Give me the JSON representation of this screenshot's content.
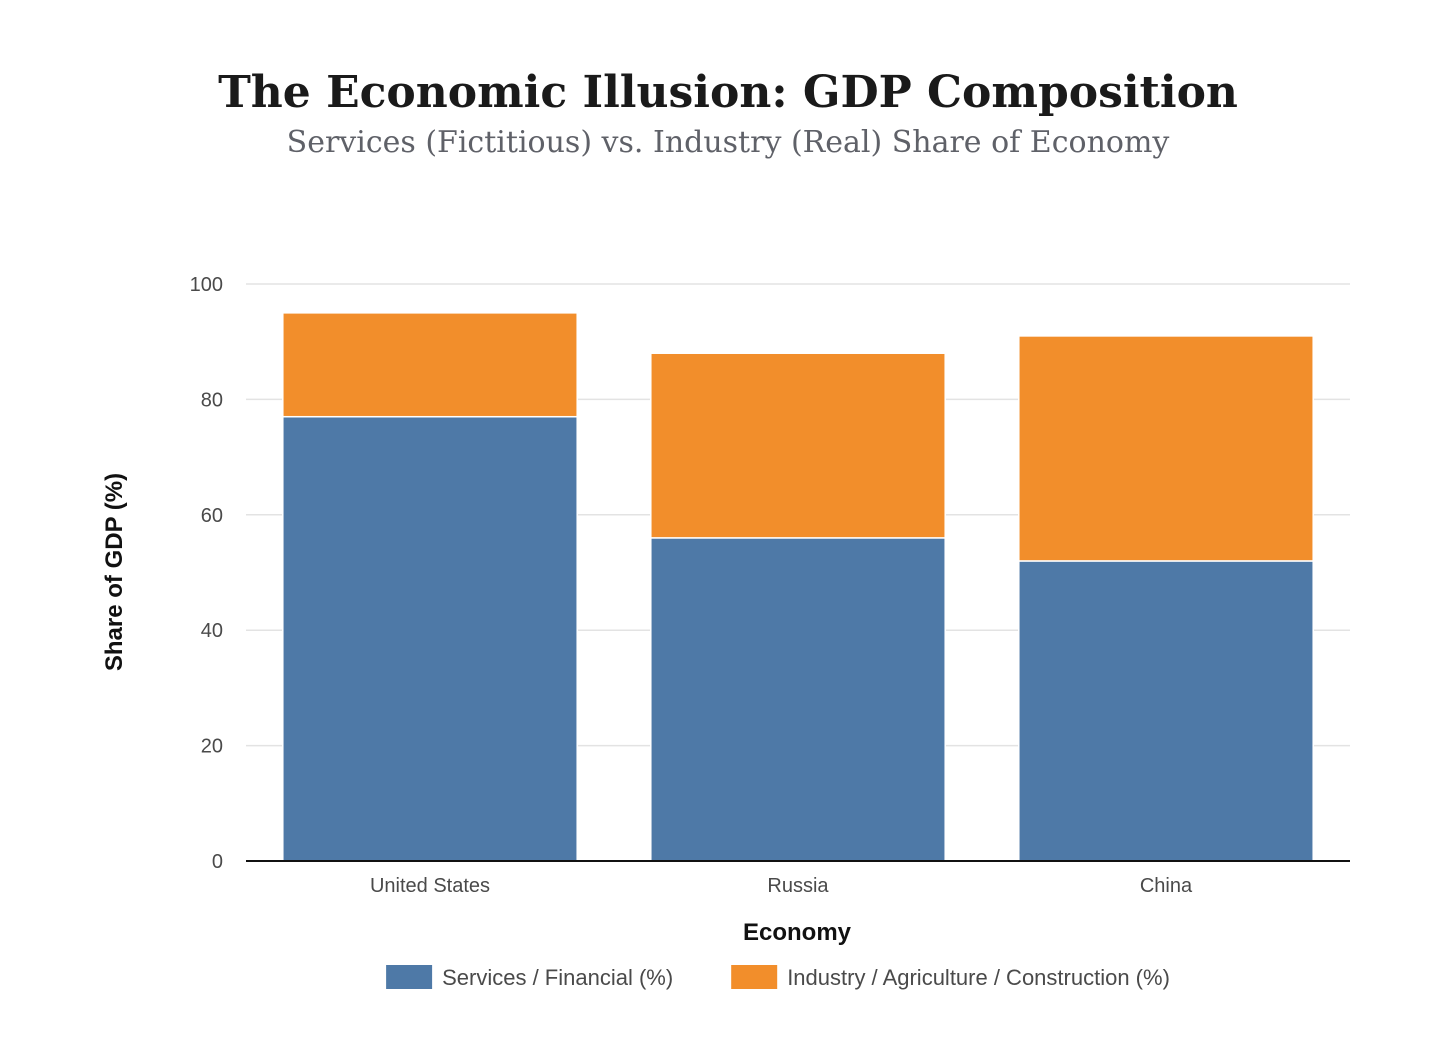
{
  "chart_data": {
    "type": "bar",
    "stacked": true,
    "title": "The Economic Illusion: GDP Composition",
    "subtitle": "Services (Fictitious) vs. Industry (Real) Share of Economy",
    "xlabel": "Economy",
    "ylabel": "Share of GDP (%)",
    "categories": [
      "United States",
      "Russia",
      "China"
    ],
    "series": [
      {
        "name": "Services / Financial (%)",
        "color": "#4e79a7",
        "values": [
          77,
          56,
          52
        ]
      },
      {
        "name": "Industry / Agriculture / Construction (%)",
        "color": "#f28e2b",
        "values": [
          18,
          32,
          39
        ]
      }
    ],
    "ylim": [
      0,
      100
    ],
    "yticks": [
      0,
      20,
      40,
      60,
      80,
      100
    ],
    "grid": true,
    "legend_position": "bottom"
  }
}
